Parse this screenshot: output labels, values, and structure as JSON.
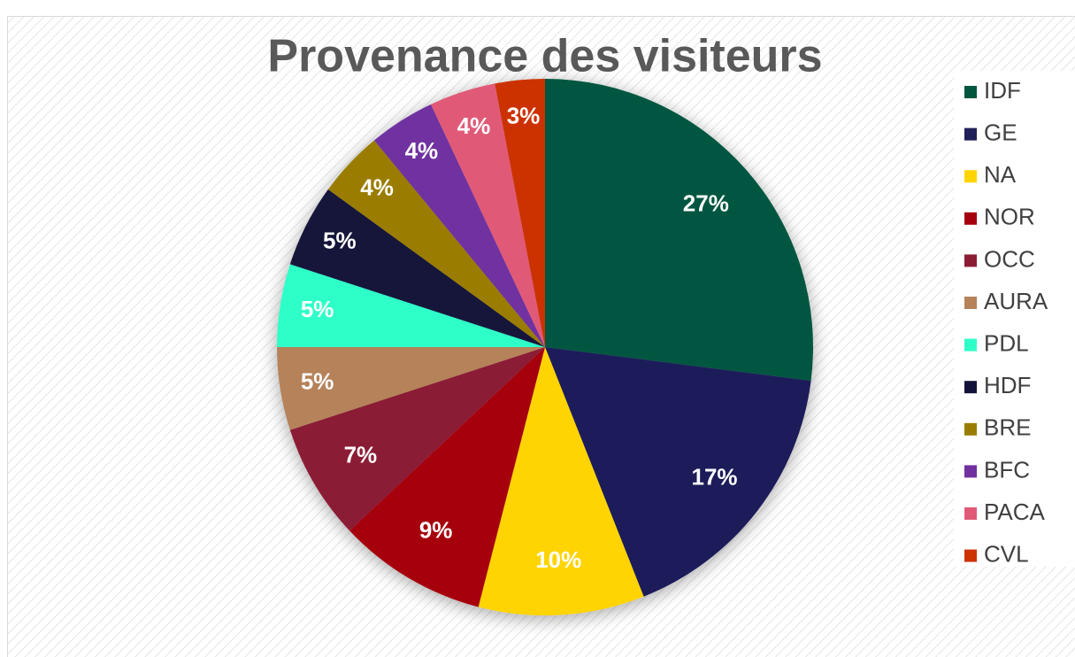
{
  "chart_data": {
    "type": "pie",
    "title": "Provenance des visiteurs",
    "categories": [
      "IDF",
      "GE",
      "NA",
      "NOR",
      "OCC",
      "AURA",
      "PDL",
      "HDF",
      "BRE",
      "BFC",
      "PACA",
      "CVL"
    ],
    "values": [
      27,
      17,
      10,
      9,
      7,
      5,
      5,
      5,
      4,
      4,
      4,
      3
    ],
    "value_labels": [
      "27%",
      "17%",
      "10%",
      "9%",
      "7%",
      "5%",
      "5%",
      "5%",
      "4%",
      "4%",
      "4%",
      "3%"
    ],
    "colors": [
      "#03573f",
      "#1f1f5a",
      "#ffd400",
      "#a6000f",
      "#8b1c34",
      "#b5825a",
      "#2effc8",
      "#13133a",
      "#9a7d00",
      "#7030a0",
      "#e05a78",
      "#cc3300"
    ],
    "legend": "right"
  }
}
